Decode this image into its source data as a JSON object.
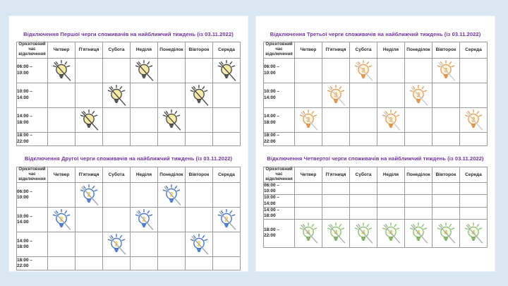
{
  "page": {
    "background_color": "#d9e7f3",
    "panel_color": "#ffffff",
    "title_color": "#7030a0",
    "border_color": "#9a9a9a"
  },
  "time_column_header": "Орієнтовний\nчас\nвідключення",
  "days": [
    "Четвер",
    "П'ятниця",
    "Субота",
    "Неділя",
    "Понеділок",
    "Вівторок",
    "Середа"
  ],
  "time_slots": [
    "06:00 –\n10:00",
    "10:00 –\n14:00",
    "14:00 –\n18:00",
    "18:00 –\n22:00"
  ],
  "tables": [
    {
      "title": "Відключення Першої черги споживачів на найближчий тиждень (із 03.11.2022)",
      "queue": 1,
      "bulb": {
        "outline": "#474747",
        "fill": "#f7e9a6",
        "base": "#474747",
        "number": "",
        "number_color": "",
        "slash": "#474747"
      },
      "row_heights": [
        "tall",
        "tall",
        "tall",
        "short"
      ],
      "schedule": [
        [
          1,
          0,
          0,
          1,
          0,
          0,
          1
        ],
        [
          0,
          0,
          1,
          0,
          0,
          1,
          0
        ],
        [
          0,
          1,
          0,
          0,
          1,
          0,
          0
        ],
        [
          0,
          0,
          0,
          0,
          0,
          0,
          0
        ]
      ]
    },
    {
      "title": "Відключення Другої черги споживачів на найближчий тиждень (із 03.11.2022)",
      "queue": 2,
      "bulb": {
        "outline": "#4472c4",
        "fill": "#ffffff",
        "base": "#4472c4",
        "number": "2",
        "number_color": "#f2c12e",
        "slash": "#9aa5b1"
      },
      "row_heights": [
        "tall",
        "tall",
        "tall",
        "short"
      ],
      "schedule": [
        [
          0,
          1,
          0,
          0,
          1,
          0,
          0
        ],
        [
          1,
          0,
          0,
          1,
          0,
          0,
          1
        ],
        [
          0,
          0,
          1,
          0,
          0,
          1,
          0
        ],
        [
          0,
          0,
          0,
          0,
          0,
          0,
          0
        ]
      ]
    },
    {
      "title": "Відключення Третьої черги споживачів на найближчий тиждень (із 03.11.2022)",
      "queue": 3,
      "bulb": {
        "outline": "#e0a05c",
        "fill": "#fdf4e3",
        "base": "#d98f45",
        "number": "3",
        "number_color": "#e8a83c",
        "slash": "#c9c9c9"
      },
      "row_heights": [
        "tall",
        "tall",
        "tall",
        "short"
      ],
      "schedule": [
        [
          0,
          0,
          1,
          0,
          0,
          1,
          0
        ],
        [
          0,
          1,
          0,
          0,
          1,
          0,
          0
        ],
        [
          1,
          0,
          0,
          1,
          0,
          0,
          1
        ],
        [
          0,
          0,
          0,
          0,
          0,
          0,
          0
        ]
      ]
    },
    {
      "title": "Відключення Четвертої черги споживачів на найближчий тиждень (із 03.11.2022)",
      "queue": 4,
      "bulb": {
        "outline": "#8cbf72",
        "fill": "#f5faf1",
        "base": "#7cab61",
        "number": "4",
        "number_color": "#c9c23e",
        "slash": "#ababab"
      },
      "row_heights": [
        "xshort",
        "xshort",
        "xshort",
        "xtall"
      ],
      "schedule": [
        [
          0,
          0,
          0,
          0,
          0,
          0,
          0
        ],
        [
          0,
          0,
          0,
          0,
          0,
          0,
          0
        ],
        [
          0,
          0,
          0,
          0,
          0,
          0,
          0
        ],
        [
          1,
          1,
          1,
          1,
          1,
          1,
          1
        ]
      ]
    }
  ]
}
